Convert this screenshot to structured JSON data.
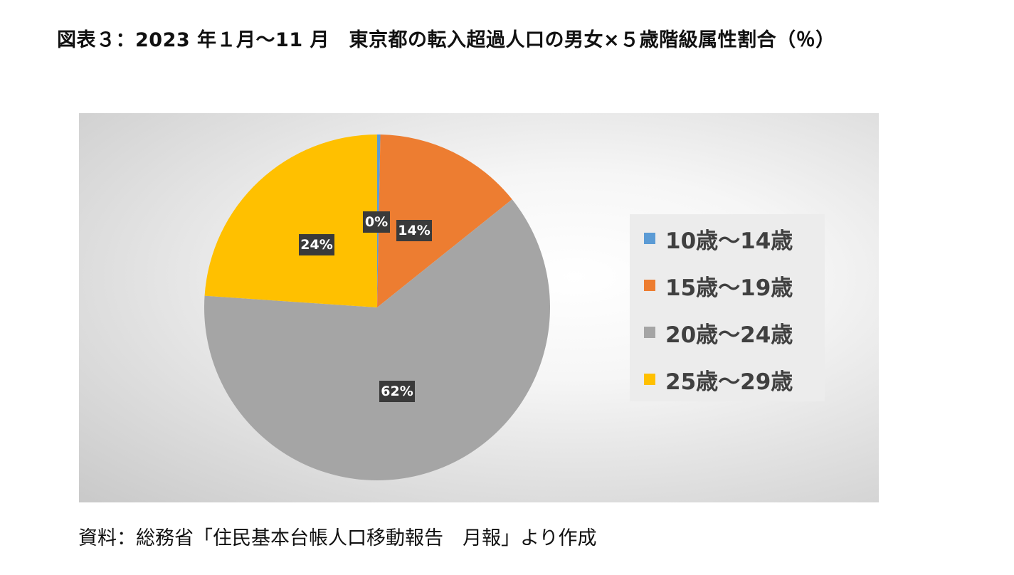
{
  "title": "図表３：2023 年１月〜11 月　東京都の転入超過人口の男女×５歳階級属性割合（％）",
  "source": "資料：総務省「住民基本台帳人口移動報告　月報」より作成",
  "colors": {
    "chart_background": "#e6e6e6",
    "legend_background": "#ececec",
    "label_box": "#3a3a3a",
    "label_text": "#ffffff"
  },
  "chart_data": {
    "type": "pie",
    "title": "",
    "start_angle_deg": 0,
    "direction": "clockwise",
    "legend_position": "right",
    "slices": [
      {
        "label": "10歳〜14歳",
        "value": 0.3,
        "display": "0%",
        "color": "#5b9bd5"
      },
      {
        "label": "15歳〜19歳",
        "value": 14,
        "display": "14%",
        "color": "#ed7d31"
      },
      {
        "label": "20歳〜24歳",
        "value": 62,
        "display": "62%",
        "color": "#a5a5a5"
      },
      {
        "label": "25歳〜29歳",
        "value": 24,
        "display": "24%",
        "color": "#ffc000"
      }
    ]
  }
}
